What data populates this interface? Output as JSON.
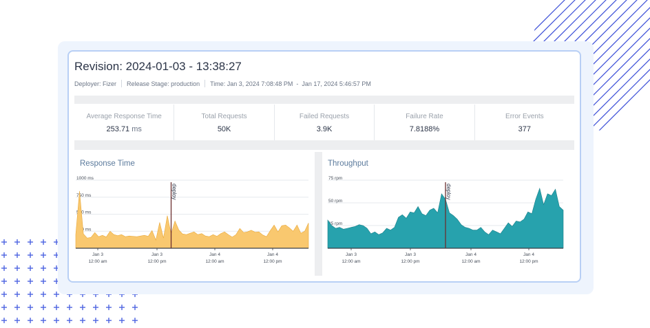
{
  "revision": {
    "title": "Revision: 2024-01-03 - 13:38:27",
    "deployer": "Deployer: Fizer",
    "release_stage": "Release Stage: production",
    "time_range": "Time: Jan 3, 2024 7:08:48 PM  -  Jan 17, 2024 5:46:57 PM"
  },
  "stats": [
    {
      "label": "Average Response Time",
      "value": "253.71",
      "unit": "ms"
    },
    {
      "label": "Total Requests",
      "value": "50K",
      "unit": ""
    },
    {
      "label": "Failed Requests",
      "value": "3.9K",
      "unit": ""
    },
    {
      "label": "Failure Rate",
      "value": "7.8188%",
      "unit": ""
    },
    {
      "label": "Error Events",
      "value": "377",
      "unit": ""
    }
  ],
  "colors": {
    "accent_border": "#b8cff5",
    "response_fill": "#f9c86f",
    "response_line": "#e9a83a",
    "throughput_fill": "#27a2ad",
    "throughput_line": "#1a7f88",
    "deploy_marker": "#6b2f2f"
  },
  "chart_data": [
    {
      "type": "area",
      "title": "Response Time",
      "y_unit": "ms",
      "ylim": [
        0,
        1000
      ],
      "yticks": [
        "1000 ms",
        "750 ms",
        "500 ms",
        "250 ms"
      ],
      "xticks": [
        "Jan 3\n12:00 am",
        "Jan 3\n12:00 pm",
        "Jan 4\n12:00 am",
        "Jan 4\n12:00 pm"
      ],
      "deploy_label": "deploy",
      "deploy_index": 25,
      "values": [
        200,
        840,
        210,
        150,
        160,
        230,
        170,
        190,
        165,
        250,
        200,
        185,
        200,
        170,
        180,
        175,
        170,
        180,
        190,
        175,
        260,
        120,
        380,
        150,
        480,
        210,
        400,
        270,
        210,
        200,
        220,
        240,
        200,
        215,
        180,
        170,
        200,
        175,
        215,
        240,
        200,
        165,
        200,
        290,
        230,
        240,
        265,
        235,
        240,
        195,
        170,
        260,
        340,
        240,
        330,
        340,
        300,
        250,
        340,
        220,
        250,
        370
      ]
    },
    {
      "type": "area",
      "title": "Throughput",
      "y_unit": "rpm",
      "ylim": [
        0,
        75
      ],
      "yticks": [
        "75 rpm",
        "50 rpm",
        "25 rpm"
      ],
      "xticks": [
        "Jan 3\n12:00 am",
        "Jan 3\n12:00 pm",
        "Jan 4\n12:00 am",
        "Jan 4\n12:00 pm"
      ],
      "deploy_label": "deploy",
      "deploy_index": 30,
      "values": [
        31,
        25,
        22,
        23,
        21,
        22,
        23,
        24,
        26,
        25,
        22,
        16,
        18,
        15,
        17,
        22,
        20,
        23,
        34,
        37,
        33,
        40,
        39,
        46,
        38,
        36,
        42,
        44,
        39,
        60,
        54,
        39,
        36,
        32,
        26,
        23,
        22,
        20,
        20,
        23,
        18,
        15,
        20,
        18,
        16,
        22,
        28,
        24,
        30,
        29,
        32,
        40,
        38,
        54,
        66,
        48,
        60,
        58,
        65,
        46,
        42
      ]
    }
  ]
}
